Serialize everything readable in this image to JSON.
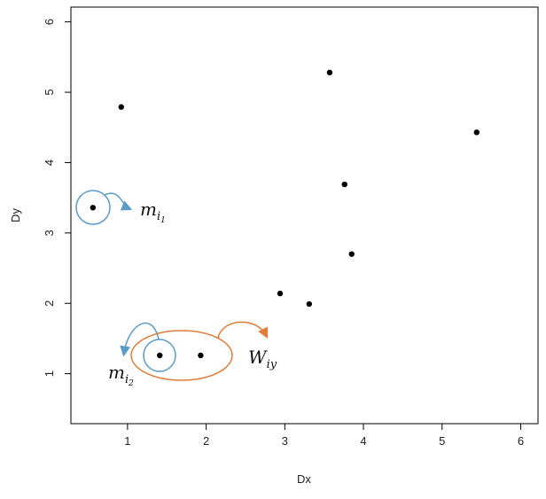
{
  "chart_data": {
    "type": "scatter",
    "x_label": "Dx",
    "y_label": "Dy",
    "x": [
      0.56,
      0.92,
      1.41,
      1.93,
      2.94,
      3.31,
      3.57,
      3.76,
      3.85,
      5.44
    ],
    "values": [
      3.36,
      4.79,
      1.26,
      1.26,
      2.14,
      1.99,
      5.28,
      3.69,
      2.7,
      4.43
    ],
    "color": "#000000",
    "xlim": [
      0.28,
      6.22
    ],
    "ylim": [
      0.29,
      6.21
    ],
    "xticks": [
      1,
      2,
      3,
      4,
      5,
      6
    ],
    "yticks": [
      1,
      2,
      3,
      4,
      5,
      6
    ],
    "annotations": [
      {
        "base": "m",
        "sub": "i",
        "subsub": "1"
      },
      {
        "base": "m",
        "sub": "i",
        "subsub": "2"
      },
      {
        "base": "W",
        "sub": "iy"
      }
    ]
  }
}
